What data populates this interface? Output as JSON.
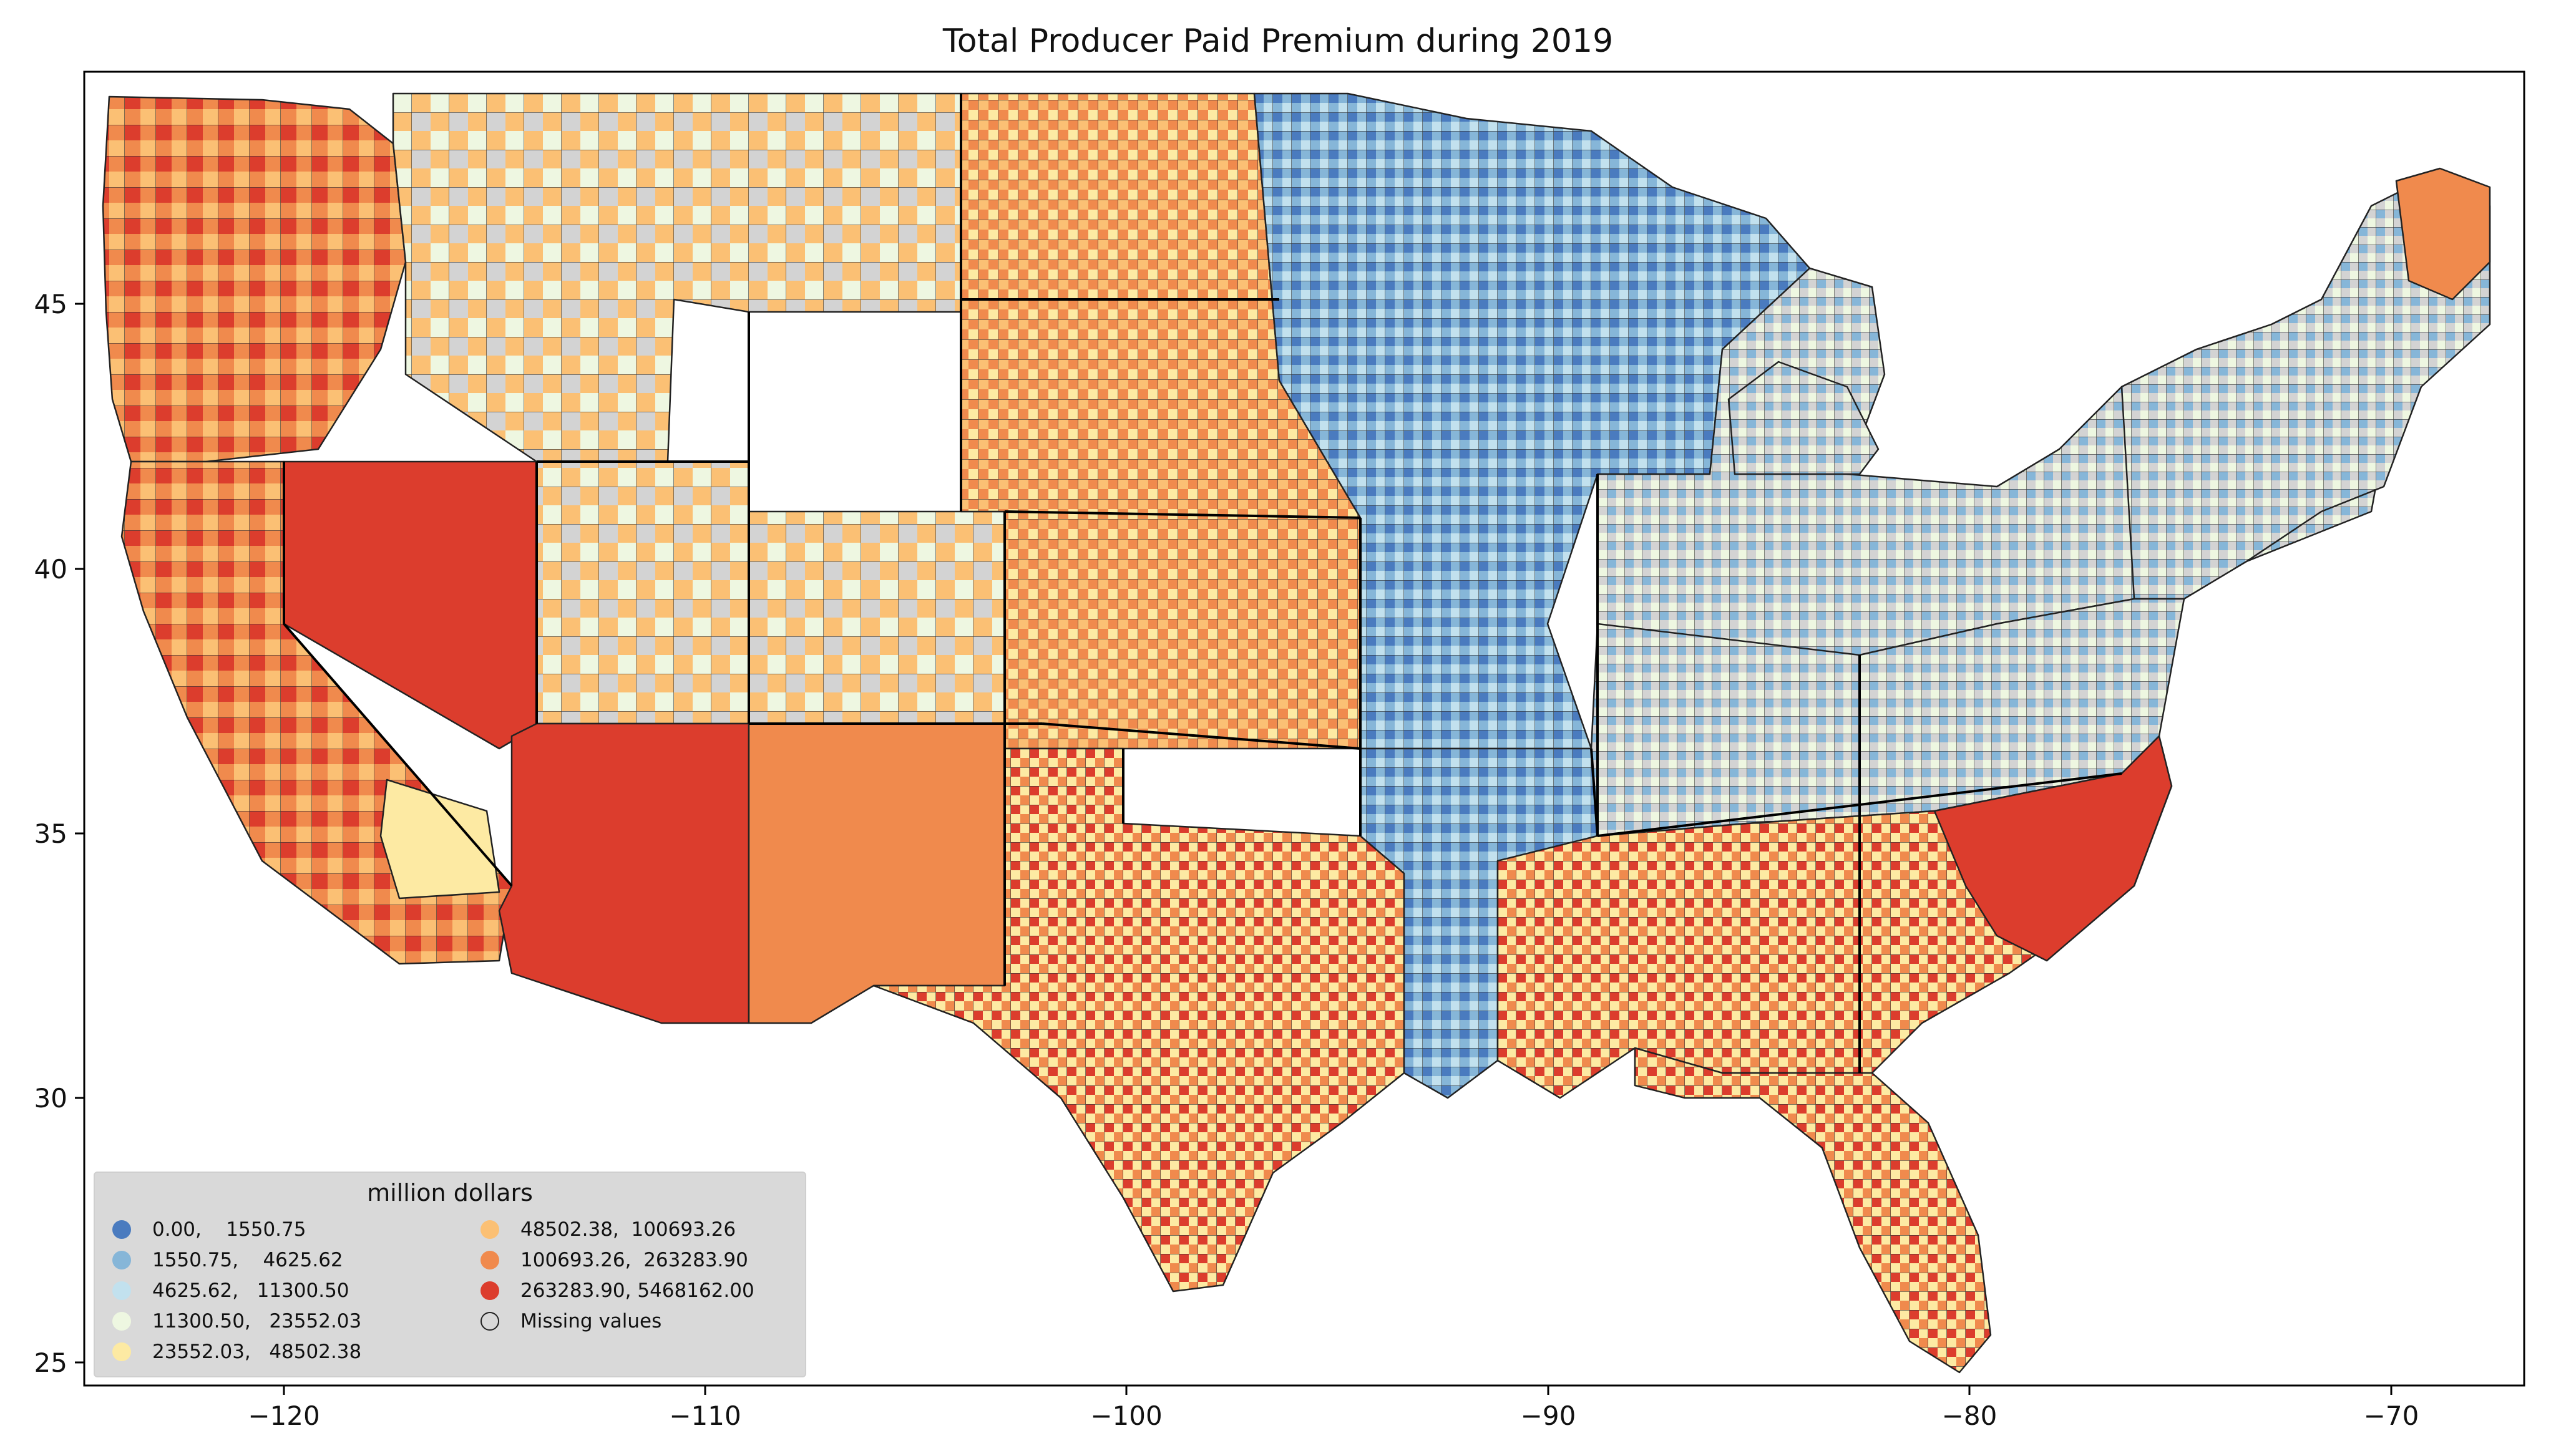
{
  "title": "Total Producer Paid Premium during 2019",
  "axes": {
    "x_ticks": [
      "−120",
      "−110",
      "−100",
      "−90",
      "−80",
      "−70"
    ],
    "y_ticks": [
      "45",
      "40",
      "35",
      "30",
      "25"
    ]
  },
  "legend": {
    "title": "million dollars",
    "items": [
      {
        "label": "0.00,    1550.75",
        "color": "#4a7bbf"
      },
      {
        "label": "1550.75,    4625.62",
        "color": "#86b6d8"
      },
      {
        "label": "4625.62,   11300.50",
        "color": "#c2e1ee"
      },
      {
        "label": "11300.50,   23552.03",
        "color": "#eef7e1"
      },
      {
        "label": "23552.03,   48502.38",
        "color": "#fdeaa3"
      },
      {
        "label": "48502.38,  100693.26",
        "color": "#fbc074"
      },
      {
        "label": "100693.26,  263283.90",
        "color": "#f08a4d"
      },
      {
        "label": "263283.90, 5468162.00",
        "color": "#dc3d2d"
      },
      {
        "label": "Missing values",
        "color": "#d3d3d3"
      }
    ]
  },
  "colors": {
    "missing": "#d3d3d3",
    "boundary": "#000000"
  }
}
